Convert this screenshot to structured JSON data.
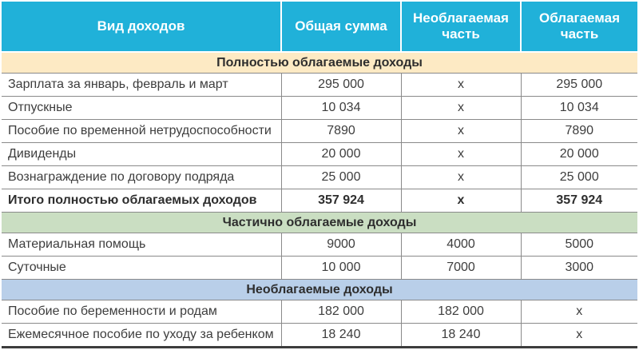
{
  "colors": {
    "header_bg": "#20b1d9",
    "section_fully_taxable_bg": "#fdeac4",
    "section_partially_taxable_bg": "#cadec2",
    "section_nontaxable_bg": "#b9cfe9",
    "grid_line": "#8a8a8a",
    "bottom_border": "#3c3c3c",
    "header_text": "#ffffff",
    "body_text": "#3d3d3d"
  },
  "table": {
    "columns": [
      {
        "label": "Вид доходов"
      },
      {
        "label": "Общая сумма"
      },
      {
        "label": "Необлагаемая часть"
      },
      {
        "label": "Облагаемая часть"
      }
    ],
    "sections": [
      {
        "title": "Полностью облагаемые доходы",
        "rows": [
          {
            "label": "Зарплата за январь, февраль и март",
            "total": "295 000",
            "nontax": "x",
            "tax": "295 000"
          },
          {
            "label": "Отпускные",
            "total": "10 034",
            "nontax": "x",
            "tax": "10 034"
          },
          {
            "label": "Пособие по временной нетрудоспособности",
            "total": "7890",
            "nontax": "x",
            "tax": "7890"
          },
          {
            "label": "Дивиденды",
            "total": "20 000",
            "nontax": "x",
            "tax": "20 000"
          },
          {
            "label": "Вознаграждение по договору подряда",
            "total": "25 000",
            "nontax": "x",
            "tax": "25 000"
          },
          {
            "label": "Итого полностью облагаемых доходов",
            "total": "357 924",
            "nontax": "x",
            "tax": "357 924"
          }
        ]
      },
      {
        "title": "Частично облагаемые доходы",
        "rows": [
          {
            "label": "Материальная помощь",
            "total": "9000",
            "nontax": "4000",
            "tax": "5000"
          },
          {
            "label": "Суточные",
            "total": "10 000",
            "nontax": "7000",
            "tax": "3000"
          }
        ]
      },
      {
        "title": "Необлагаемые доходы",
        "rows": [
          {
            "label": "Пособие по беременности и родам",
            "total": "182 000",
            "nontax": "182 000",
            "tax": "x"
          },
          {
            "label": "Ежемесячное пособие по уходу за ребенком",
            "total": "18 240",
            "nontax": "18 240",
            "tax": "x"
          }
        ]
      }
    ]
  }
}
